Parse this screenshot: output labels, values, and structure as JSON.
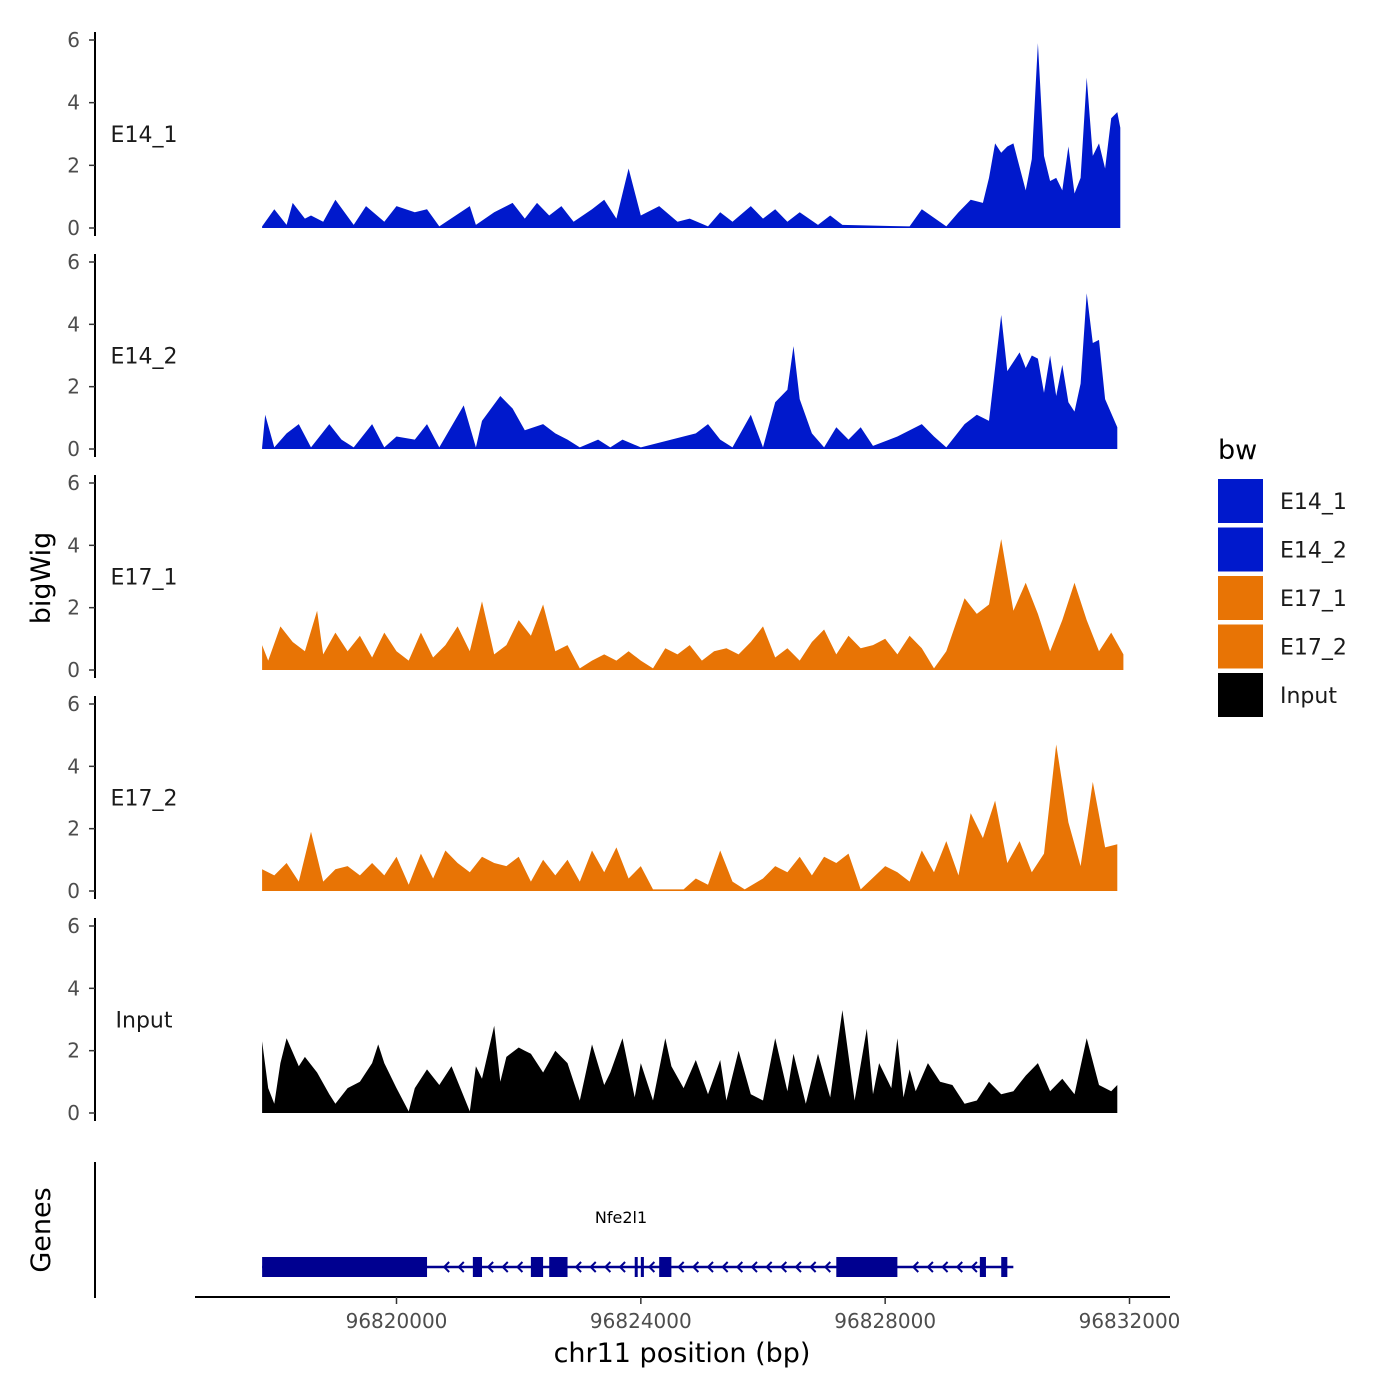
{
  "chart_data": {
    "type": "area",
    "title": "",
    "ylabel": "bigWig",
    "xlabel": "chr11 position (bp)",
    "xlim": [
      96816200,
      96832700
    ],
    "ylim": [
      0,
      6.2
    ],
    "y_ticks": [
      0,
      2,
      4,
      6
    ],
    "x_ticks": [
      96820000,
      96824000,
      96828000,
      96832000
    ],
    "x_tick_labels": [
      "96820000",
      "96824000",
      "96828000",
      "96832000"
    ],
    "legend": {
      "title": "bw",
      "placement": "right",
      "entries": [
        {
          "label": "E14_1",
          "color": "#0019CC"
        },
        {
          "label": "E14_2",
          "color": "#0019CC"
        },
        {
          "label": "E17_1",
          "color": "#E87405"
        },
        {
          "label": "E17_2",
          "color": "#E87405"
        },
        {
          "label": "Input",
          "color": "#000000"
        }
      ]
    },
    "series": [
      {
        "name": "E14_1",
        "color": "#0019CC",
        "x": [
          96817800,
          96818000,
          96818200,
          96818300,
          96818500,
          96818600,
          96818800,
          96819000,
          96819300,
          96819500,
          96819800,
          96820000,
          96820300,
          96820500,
          96820700,
          96821200,
          96821300,
          96821600,
          96821900,
          96822100,
          96822300,
          96822500,
          96822700,
          96822900,
          96823200,
          96823400,
          96823600,
          96823800,
          96824000,
          96824300,
          96824600,
          96824800,
          96825100,
          96825300,
          96825500,
          96825800,
          96826000,
          96826200,
          96826400,
          96826600,
          96826900,
          96827100,
          96827300,
          96828400,
          96828600,
          96829000,
          96829200,
          96829400,
          96829600,
          96829700,
          96829800,
          96829900,
          96830000,
          96830100,
          96830300,
          96830400,
          96830500,
          96830600,
          96830700,
          96830800,
          96830900,
          96831000,
          96831100,
          96831200,
          96831300,
          96831400,
          96831500,
          96831600,
          96831700,
          96831800,
          96831850
        ],
        "y": [
          0.05,
          0.6,
          0.1,
          0.8,
          0.3,
          0.4,
          0.2,
          0.9,
          0.1,
          0.7,
          0.2,
          0.7,
          0.5,
          0.6,
          0.05,
          0.7,
          0.1,
          0.5,
          0.8,
          0.3,
          0.8,
          0.4,
          0.7,
          0.2,
          0.6,
          0.9,
          0.3,
          1.9,
          0.4,
          0.7,
          0.2,
          0.3,
          0.05,
          0.5,
          0.2,
          0.7,
          0.3,
          0.6,
          0.2,
          0.5,
          0.1,
          0.4,
          0.1,
          0.05,
          0.6,
          0.05,
          0.5,
          0.9,
          0.8,
          1.6,
          2.7,
          2.4,
          2.6,
          2.7,
          1.2,
          2.2,
          5.9,
          2.3,
          1.5,
          1.6,
          1.2,
          2.6,
          1.1,
          1.6,
          4.8,
          2.3,
          2.7,
          1.9,
          3.5,
          3.7,
          3.2
        ]
      },
      {
        "name": "E14_2",
        "color": "#0019CC",
        "x": [
          96817800,
          96817850,
          96818000,
          96818200,
          96818400,
          96818600,
          96818900,
          96819100,
          96819300,
          96819600,
          96819800,
          96820000,
          96820300,
          96820500,
          96820700,
          96821100,
          96821300,
          96821400,
          96821700,
          96821900,
          96822100,
          96822400,
          96822600,
          96822800,
          96823000,
          96823300,
          96823500,
          96823700,
          96824000,
          96824900,
          96825100,
          96825300,
          96825500,
          96825800,
          96826000,
          96826200,
          96826400,
          96826500,
          96826600,
          96826800,
          96827000,
          96827200,
          96827400,
          96827600,
          96827800,
          96828200,
          96828600,
          96828800,
          96829000,
          96829300,
          96829500,
          96829700,
          96829900,
          96830000,
          96830200,
          96830300,
          96830400,
          96830500,
          96830600,
          96830700,
          96830800,
          96830900,
          96831000,
          96831100,
          96831200,
          96831300,
          96831400,
          96831500,
          96831600,
          96831800
        ],
        "y": [
          0.05,
          1.1,
          0.05,
          0.5,
          0.8,
          0.05,
          0.8,
          0.3,
          0.05,
          0.8,
          0.05,
          0.4,
          0.3,
          0.8,
          0.05,
          1.4,
          0.05,
          0.9,
          1.7,
          1.3,
          0.6,
          0.8,
          0.5,
          0.3,
          0.05,
          0.3,
          0.05,
          0.3,
          0.05,
          0.5,
          0.8,
          0.3,
          0.05,
          1.1,
          0.05,
          1.5,
          1.9,
          3.3,
          1.6,
          0.5,
          0.05,
          0.7,
          0.3,
          0.7,
          0.1,
          0.4,
          0.8,
          0.4,
          0.05,
          0.8,
          1.1,
          0.9,
          4.3,
          2.5,
          3.1,
          2.6,
          3.0,
          2.9,
          1.8,
          3.0,
          1.7,
          2.7,
          1.5,
          1.2,
          2.1,
          5.0,
          3.4,
          3.5,
          1.6,
          0.7
        ]
      },
      {
        "name": "E17_1",
        "color": "#E87405",
        "x": [
          96817800,
          96817900,
          96818100,
          96818300,
          96818500,
          96818700,
          96818800,
          96819000,
          96819200,
          96819400,
          96819600,
          96819800,
          96820000,
          96820200,
          96820400,
          96820600,
          96820800,
          96821000,
          96821200,
          96821400,
          96821600,
          96821800,
          96822000,
          96822200,
          96822400,
          96822600,
          96822800,
          96823000,
          96823200,
          96823400,
          96823600,
          96823800,
          96824000,
          96824200,
          96824400,
          96824600,
          96824800,
          96825000,
          96825200,
          96825400,
          96825600,
          96825800,
          96826000,
          96826200,
          96826400,
          96826600,
          96826800,
          96827000,
          96827200,
          96827400,
          96827600,
          96827800,
          96828000,
          96828200,
          96828400,
          96828600,
          96828800,
          96829000,
          96829300,
          96829500,
          96829700,
          96829900,
          96830100,
          96830300,
          96830500,
          96830700,
          96830900,
          96831100,
          96831300,
          96831500,
          96831700,
          96831900
        ],
        "y": [
          0.8,
          0.3,
          1.4,
          0.9,
          0.6,
          1.9,
          0.5,
          1.2,
          0.6,
          1.1,
          0.4,
          1.2,
          0.6,
          0.3,
          1.2,
          0.4,
          0.8,
          1.4,
          0.6,
          2.2,
          0.5,
          0.8,
          1.6,
          1.1,
          2.1,
          0.6,
          0.8,
          0.05,
          0.3,
          0.5,
          0.3,
          0.6,
          0.3,
          0.05,
          0.7,
          0.5,
          0.8,
          0.3,
          0.6,
          0.7,
          0.5,
          0.9,
          1.4,
          0.4,
          0.7,
          0.3,
          0.9,
          1.3,
          0.5,
          1.1,
          0.7,
          0.8,
          1.0,
          0.5,
          1.1,
          0.7,
          0.05,
          0.6,
          2.3,
          1.8,
          2.1,
          4.2,
          1.9,
          2.8,
          1.8,
          0.6,
          1.6,
          2.8,
          1.6,
          0.6,
          1.2,
          0.5
        ]
      },
      {
        "name": "E17_2",
        "color": "#E87405",
        "x": [
          96817800,
          96818000,
          96818200,
          96818400,
          96818600,
          96818800,
          96819000,
          96819200,
          96819400,
          96819600,
          96819800,
          96820000,
          96820200,
          96820400,
          96820600,
          96820800,
          96821000,
          96821200,
          96821400,
          96821600,
          96821800,
          96822000,
          96822200,
          96822400,
          96822600,
          96822800,
          96823000,
          96823200,
          96823400,
          96823600,
          96823800,
          96824000,
          96824200,
          96824700,
          96824900,
          96825100,
          96825300,
          96825500,
          96825700,
          96826000,
          96826200,
          96826400,
          96826600,
          96826800,
          96827000,
          96827200,
          96827400,
          96827600,
          96828000,
          96828200,
          96828400,
          96828600,
          96828800,
          96829000,
          96829200,
          96829400,
          96829600,
          96829800,
          96830000,
          96830200,
          96830400,
          96830600,
          96830800,
          96831000,
          96831200,
          96831400,
          96831600,
          96831800
        ],
        "y": [
          0.7,
          0.5,
          0.9,
          0.3,
          1.9,
          0.3,
          0.7,
          0.8,
          0.5,
          0.9,
          0.5,
          1.1,
          0.2,
          1.2,
          0.4,
          1.3,
          0.9,
          0.6,
          1.1,
          0.9,
          0.8,
          1.1,
          0.3,
          1.0,
          0.5,
          1.0,
          0.3,
          1.3,
          0.6,
          1.4,
          0.4,
          0.8,
          0.05,
          0.05,
          0.4,
          0.2,
          1.3,
          0.3,
          0.05,
          0.4,
          0.8,
          0.6,
          1.1,
          0.5,
          1.1,
          0.9,
          1.2,
          0.05,
          0.8,
          0.6,
          0.3,
          1.3,
          0.6,
          1.6,
          0.5,
          2.5,
          1.7,
          2.9,
          0.9,
          1.6,
          0.6,
          1.2,
          4.7,
          2.2,
          0.8,
          3.5,
          1.4,
          1.5
        ]
      },
      {
        "name": "Input",
        "color": "#000000",
        "x": [
          96817800,
          96817900,
          96818000,
          96818100,
          96818200,
          96818400,
          96818500,
          96818700,
          96818900,
          96819000,
          96819200,
          96819400,
          96819600,
          96819700,
          96819800,
          96820000,
          96820200,
          96820300,
          96820500,
          96820700,
          96820900,
          96821200,
          96821300,
          96821400,
          96821600,
          96821700,
          96821800,
          96822000,
          96822100,
          96822200,
          96822400,
          96822600,
          96822800,
          96823000,
          96823200,
          96823400,
          96823500,
          96823700,
          96823900,
          96824000,
          96824200,
          96824400,
          96824500,
          96824700,
          96824900,
          96825100,
          96825300,
          96825400,
          96825600,
          96825800,
          96826000,
          96826200,
          96826400,
          96826500,
          96826700,
          96826900,
          96827100,
          96827300,
          96827500,
          96827700,
          96827800,
          96827900,
          96828100,
          96828200,
          96828300,
          96828400,
          96828500,
          96828700,
          96828900,
          96829100,
          96829300,
          96829500,
          96829700,
          96829900,
          96830100,
          96830300,
          96830500,
          96830700,
          96830900,
          96831100,
          96831300,
          96831500,
          96831700,
          96831800
        ],
        "y": [
          2.3,
          0.8,
          0.3,
          1.6,
          2.4,
          1.5,
          1.8,
          1.3,
          0.6,
          0.3,
          0.8,
          1.0,
          1.6,
          2.2,
          1.6,
          0.8,
          0.05,
          0.8,
          1.4,
          0.9,
          1.5,
          0.05,
          1.5,
          1.1,
          2.8,
          1.0,
          1.8,
          2.1,
          2.0,
          1.9,
          1.3,
          2.0,
          1.6,
          0.4,
          2.2,
          0.9,
          1.3,
          2.4,
          0.5,
          1.6,
          0.4,
          2.4,
          1.5,
          0.8,
          1.7,
          0.6,
          1.7,
          0.4,
          2.0,
          0.6,
          0.4,
          2.4,
          0.7,
          1.9,
          0.3,
          1.9,
          0.5,
          3.3,
          0.4,
          2.7,
          0.6,
          1.6,
          0.8,
          2.4,
          0.5,
          1.4,
          0.7,
          1.6,
          1.0,
          0.9,
          0.3,
          0.4,
          1.0,
          0.6,
          0.7,
          1.2,
          1.6,
          0.7,
          1.1,
          0.6,
          2.4,
          0.9,
          0.7,
          0.9
        ]
      }
    ],
    "gene_track": {
      "label": "Genes",
      "gene_name": "Nfe2l1",
      "color": "#000090",
      "strand": "-",
      "intron_span": [
        96817800,
        96830000
      ],
      "exons": [
        [
          96817800,
          96820500
        ],
        [
          96821250,
          96821400
        ],
        [
          96822200,
          96822400
        ],
        [
          96822500,
          96822800
        ],
        [
          96823900,
          96823930
        ],
        [
          96824000,
          96824050
        ],
        [
          96824300,
          96824500
        ],
        [
          96827200,
          96828200
        ],
        [
          96829550,
          96829650
        ],
        [
          96829900,
          96830000
        ]
      ]
    }
  }
}
